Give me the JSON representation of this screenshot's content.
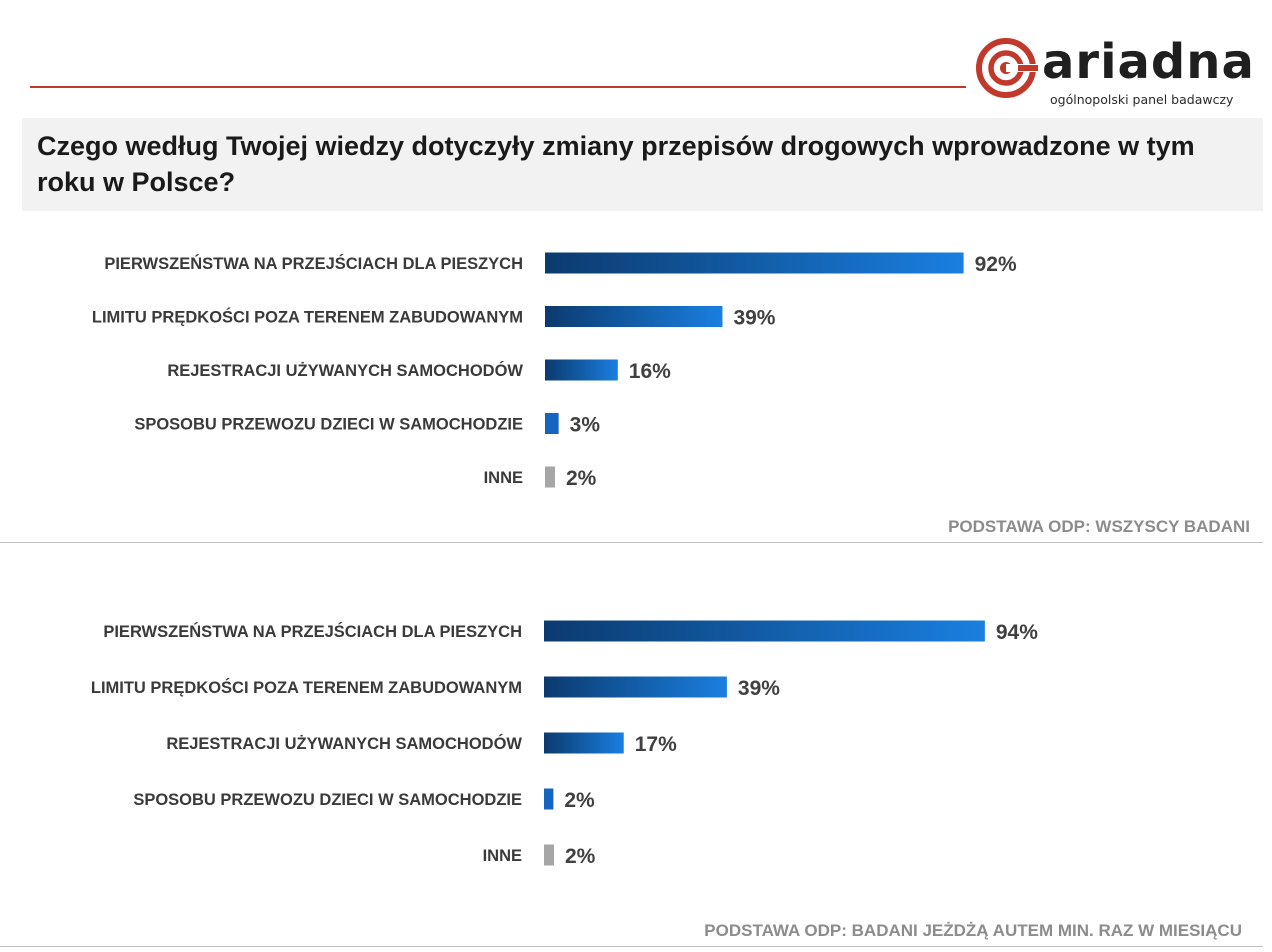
{
  "brand": {
    "name": "ariadna",
    "tagline": "ogólnopolski panel badawczy",
    "accent_color": "#c0392b",
    "logo_icon": "ariadna-spiral-icon"
  },
  "question": "Czego według Twojej wiedzy dotyczyły zmiany przepisów drogowych wprowadzone w tym roku w Polsce?",
  "colors": {
    "bar_gradient_start": "#0b3a6e",
    "bar_gradient_end": "#1a7fe0",
    "other_bar": "#a6a6a6",
    "label_text": "#3a3a3a",
    "note_text": "#8c8c8c"
  },
  "chart_data": [
    {
      "type": "bar",
      "orientation": "horizontal",
      "categories": [
        "PIERWSZEŃSTWA NA PRZEJŚCIACH DLA PIESZYCH",
        "LIMITU PRĘDKOŚCI POZA TERENEM ZABUDOWANYM",
        "REJESTRACJI UŻYWANYCH SAMOCHODÓW",
        "SPOSOBU PRZEWOZU DZIECI W SAMOCHODZIE",
        "INNE"
      ],
      "values": [
        92,
        39,
        16,
        3,
        2
      ],
      "value_labels": [
        "92%",
        "39%",
        "16%",
        "3%",
        "2%"
      ],
      "unit": "%",
      "xlim": [
        0,
        100
      ],
      "grid": false,
      "base_note": "PODSTAWA ODP: WSZYSCY BADANI"
    },
    {
      "type": "bar",
      "orientation": "horizontal",
      "categories": [
        "PIERWSZEŃSTWA NA PRZEJŚCIACH DLA PIESZYCH",
        "LIMITU PRĘDKOŚCI POZA TERENEM ZABUDOWANYM",
        "REJESTRACJI UŻYWANYCH SAMOCHODÓW",
        "SPOSOBU PRZEWOZU DZIECI W SAMOCHODZIE",
        "INNE"
      ],
      "values": [
        94,
        39,
        17,
        2,
        2
      ],
      "value_labels": [
        "94%",
        "39%",
        "17%",
        "2%",
        "2%"
      ],
      "unit": "%",
      "xlim": [
        0,
        100
      ],
      "grid": false,
      "base_note": "PODSTAWA ODP: BADANI JEŻDŻĄ AUTEM  MIN. RAZ W MIESIĄCU"
    }
  ]
}
